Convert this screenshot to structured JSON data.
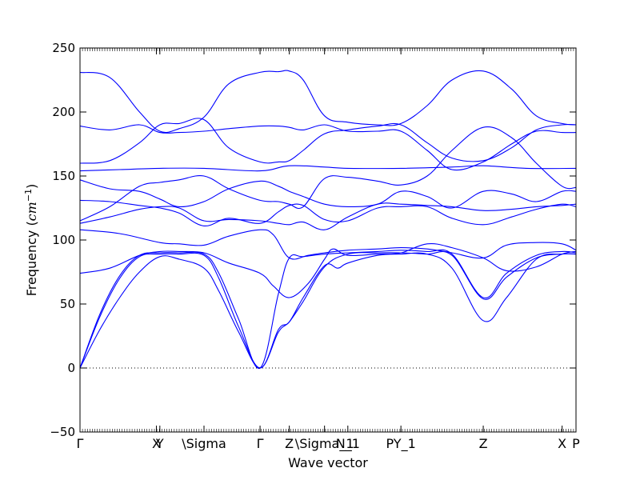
{
  "chart_data": {
    "type": "line",
    "title": "",
    "xlabel": "Wave vector",
    "ylabel": "Frequency ($cm^{-1}$)",
    "ylim": [
      -50,
      250
    ],
    "yticks": [
      -50,
      0,
      50,
      100,
      150,
      200,
      250
    ],
    "xlim": [
      0,
      100
    ],
    "xticks": [
      {
        "x": 0,
        "label": "Γ"
      },
      {
        "x": 15.4,
        "label": "X"
      },
      {
        "x": 16.1,
        "label": "Y"
      },
      {
        "x": 25.0,
        "label": "\\Sigma"
      },
      {
        "x": 36.3,
        "label": "Γ"
      },
      {
        "x": 42.2,
        "label": "Z"
      },
      {
        "x": 49.3,
        "label": "\\Sigma_1"
      },
      {
        "x": 54.0,
        "label": "N_1"
      },
      {
        "x": 64.7,
        "label": "PY_1"
      },
      {
        "x": 81.3,
        "label": "Z"
      },
      {
        "x": 97.2,
        "label": "X"
      },
      {
        "x": 100,
        "label": "P"
      }
    ],
    "zero_line": true,
    "grid": false,
    "color": "#0000ff",
    "series": [
      {
        "x": [
          0,
          6,
          12,
          16.1,
          20,
          25,
          30,
          36.3,
          40,
          42.2,
          45,
          49.3,
          54,
          60,
          64.7,
          70,
          75,
          81.3,
          87,
          92,
          97.2,
          100
        ],
        "values": [
          231,
          227,
          200,
          185,
          187,
          196,
          222,
          231,
          231.5,
          232,
          225,
          197,
          192,
          190,
          191,
          205,
          225,
          232,
          218,
          197,
          191,
          190
        ]
      },
      {
        "x": [
          0,
          6,
          12,
          16.1,
          20,
          25,
          30,
          36.3,
          40,
          42.2,
          45,
          49.3,
          54,
          60,
          64.7,
          70,
          75,
          81.3,
          87,
          92,
          97.2,
          100
        ],
        "values": [
          189,
          186,
          190,
          184,
          184,
          185,
          187,
          189,
          189,
          188,
          186,
          190,
          185,
          185,
          185,
          170,
          155,
          161,
          175,
          185,
          184,
          184
        ]
      },
      {
        "x": [
          0,
          6,
          12,
          16.1,
          20,
          25,
          30,
          36.3,
          40,
          42.2,
          45,
          49.3,
          54,
          60,
          64.7,
          70,
          75,
          81.3,
          87,
          92,
          97.2,
          100
        ],
        "values": [
          160,
          162,
          176,
          190,
          191,
          194,
          172,
          161,
          161,
          162,
          170,
          183,
          186,
          189,
          190,
          176,
          164,
          162,
          172,
          186,
          190,
          190
        ]
      },
      {
        "x": [
          0,
          8,
          16.1,
          25,
          36.3,
          42.2,
          49.3,
          54,
          64.7,
          75,
          81.3,
          90,
          100
        ],
        "values": [
          154,
          155,
          156,
          156,
          154,
          158,
          157,
          156,
          156,
          157,
          158,
          156,
          156
        ]
      },
      {
        "x": [
          0,
          6,
          12,
          16.1,
          20,
          25,
          30,
          36.3,
          40,
          42.2,
          45,
          49.3,
          54,
          60,
          64.7,
          70,
          75,
          81.3,
          87,
          92,
          97.2,
          100
        ],
        "values": [
          115,
          126,
          142,
          145,
          147,
          150,
          140,
          131,
          130,
          128,
          126,
          148,
          149,
          146,
          143,
          150,
          170,
          188,
          180,
          160,
          142,
          141
        ]
      },
      {
        "x": [
          0,
          6,
          12,
          16.1,
          20,
          25,
          30,
          36.3,
          40,
          42.2,
          45,
          49.3,
          54,
          60,
          64.7,
          70,
          75,
          81.3,
          87,
          92,
          97.2,
          100
        ],
        "values": [
          147,
          140,
          138,
          132,
          126,
          130,
          140,
          146,
          142,
          138,
          134,
          128,
          126,
          128,
          138,
          134,
          125,
          138,
          136,
          130,
          138,
          138
        ]
      },
      {
        "x": [
          0,
          6,
          12,
          16.1,
          20,
          25,
          30,
          36.3,
          40,
          42.2,
          45,
          49.3,
          54,
          60,
          64.7,
          70,
          75,
          81.3,
          87,
          92,
          97.2,
          100
        ],
        "values": [
          131,
          130,
          127,
          125,
          121,
          111,
          117,
          113,
          122,
          127,
          127,
          116,
          115,
          125,
          126,
          126,
          117,
          112,
          118,
          124,
          128,
          126
        ]
      },
      {
        "x": [
          0,
          6,
          12,
          16.1,
          20,
          25,
          30,
          36.3,
          40,
          42.2,
          45,
          49.3,
          54,
          60,
          64.7,
          70,
          75,
          81.3,
          87,
          92,
          97.2,
          100
        ],
        "values": [
          113,
          118,
          124,
          126,
          125,
          115,
          116,
          115,
          113,
          112,
          114,
          108,
          118,
          128,
          128,
          127,
          126,
          123,
          124,
          126,
          127,
          128
        ]
      },
      {
        "x": [
          0,
          8,
          16.1,
          20,
          25,
          30,
          36.3,
          39,
          42.2,
          46,
          49.3,
          54,
          60,
          64.7,
          70,
          75,
          81.3,
          86,
          92,
          97.2,
          100
        ],
        "values": [
          108,
          105,
          98,
          97,
          96,
          103,
          108,
          104,
          86,
          88,
          90,
          92,
          93,
          94,
          93,
          90,
          86,
          96,
          98,
          97,
          92
        ]
      },
      {
        "x": [
          0,
          6,
          12,
          16.1,
          20,
          25,
          30,
          36.3,
          39,
          42.2,
          46,
          49.3,
          51,
          54,
          60,
          64.7,
          70,
          75,
          81.3,
          86,
          92,
          97.2,
          100
        ],
        "values": [
          74,
          78,
          88,
          91,
          91,
          90,
          82,
          74,
          64,
          55,
          66,
          85,
          93,
          88,
          89,
          90,
          97,
          94,
          86,
          76,
          79,
          89,
          91
        ]
      },
      {
        "x": [
          0,
          4,
          8,
          12,
          16.1,
          20,
          25,
          28,
          32,
          36.3,
          40,
          42.2,
          45,
          49.3,
          54,
          60,
          64.7,
          70,
          75,
          81.3,
          86,
          92,
          97.2,
          100
        ],
        "values": [
          0,
          42,
          72,
          88,
          90,
          90,
          89,
          74,
          38,
          0,
          58,
          86,
          87,
          89,
          90,
          91,
          92,
          91,
          89,
          55,
          74,
          88,
          91,
          90
        ]
      },
      {
        "x": [
          0,
          4,
          8,
          12,
          16.1,
          20,
          25,
          28,
          32,
          36.3,
          40,
          42.2,
          45,
          49.3,
          52,
          54,
          60,
          64.7,
          70,
          75,
          81.3,
          86,
          92,
          97.2,
          100
        ],
        "values": [
          0,
          40,
          70,
          87,
          89,
          89,
          88,
          70,
          32,
          0,
          30,
          36,
          55,
          80,
          78,
          82,
          88,
          89,
          89,
          78,
          37,
          55,
          85,
          89,
          89
        ]
      },
      {
        "x": [
          0,
          4,
          8,
          12,
          16.1,
          20,
          25,
          28,
          32,
          36.3,
          40,
          42.2,
          45,
          49.3,
          54,
          60,
          64.7,
          70,
          75,
          81.3,
          86,
          92,
          97.2,
          100
        ],
        "values": [
          0,
          30,
          55,
          75,
          87,
          85,
          78,
          60,
          28,
          0,
          28,
          36,
          52,
          79,
          89,
          90,
          90,
          89,
          88,
          54,
          71,
          86,
          89,
          89
        ]
      }
    ]
  }
}
